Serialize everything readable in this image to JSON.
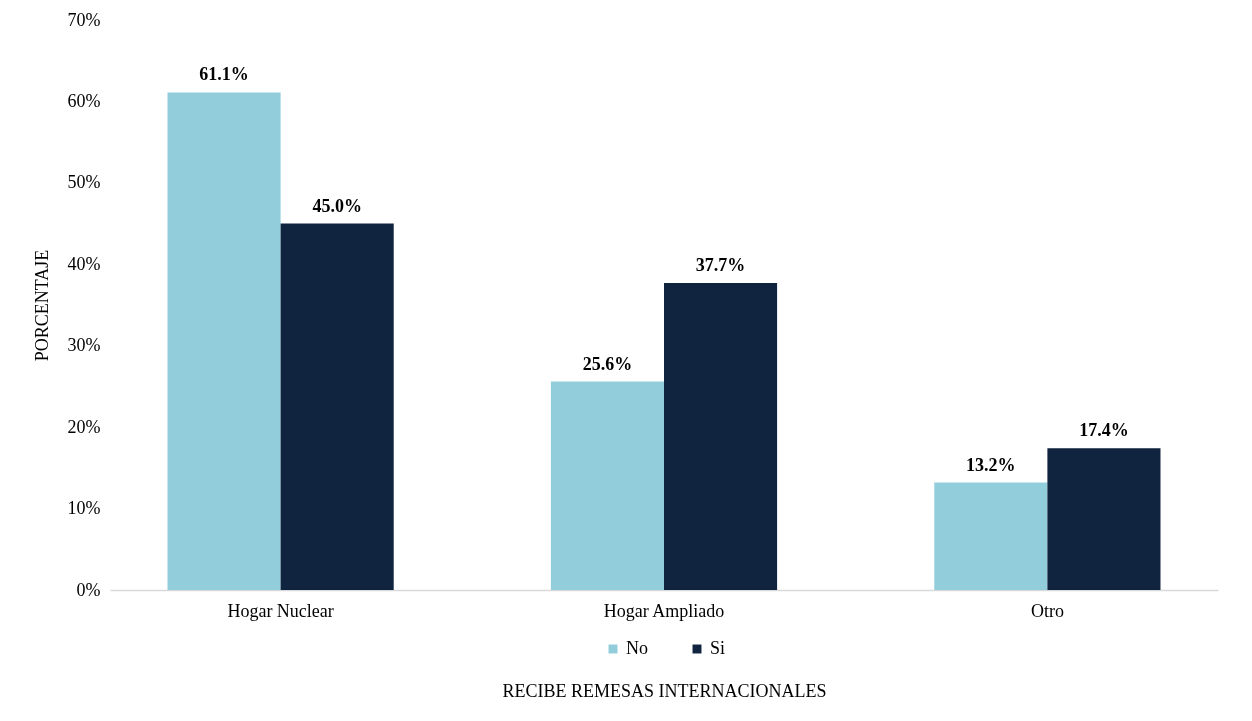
{
  "chart_data": {
    "type": "bar",
    "ylabel": "PORCENTAJE",
    "xlabel": "RECIBE REMESAS INTERNACIONALES",
    "categories": [
      "Hogar Nuclear",
      "Hogar Ampliado",
      "Otro"
    ],
    "series": [
      {
        "name": "No",
        "color": "#92cddc",
        "values": [
          61.1,
          25.6,
          13.2
        ],
        "value_labels": [
          "61.1%",
          "25.6%",
          "13.2%"
        ]
      },
      {
        "name": "Si",
        "color": "#10233f",
        "values": [
          45.0,
          37.7,
          17.4
        ],
        "value_labels": [
          "45.0%",
          "37.7%",
          "17.4%"
        ]
      }
    ],
    "ylim": [
      0,
      70
    ],
    "yticks": [
      {
        "value": 0,
        "label": "0%"
      },
      {
        "value": 10,
        "label": "10%"
      },
      {
        "value": 20,
        "label": "20%"
      },
      {
        "value": 30,
        "label": "30%"
      },
      {
        "value": 40,
        "label": "40%"
      },
      {
        "value": 50,
        "label": "50%"
      },
      {
        "value": 60,
        "label": "60%"
      },
      {
        "value": 70,
        "label": "70%"
      }
    ],
    "legend": "bottom",
    "grid": false
  }
}
